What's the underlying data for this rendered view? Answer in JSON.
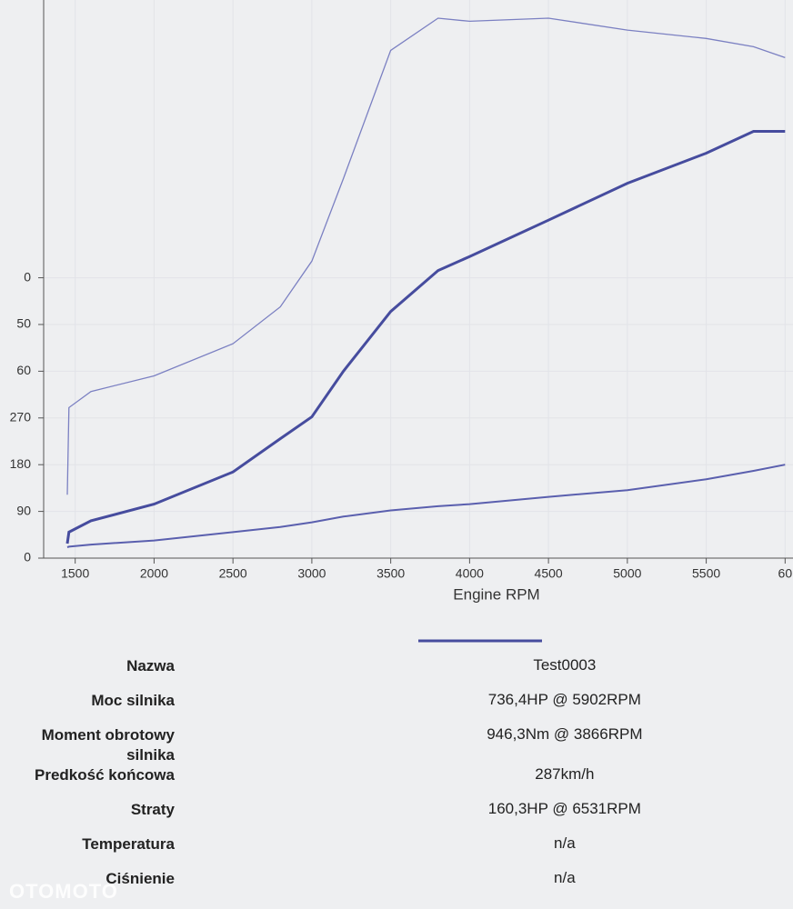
{
  "chart_data": {
    "type": "line",
    "xlabel": "Engine RPM",
    "x": [
      1450,
      1460,
      1600,
      2000,
      2500,
      2800,
      3000,
      3200,
      3500,
      3800,
      4000,
      4500,
      5000,
      5500,
      5800,
      6000
    ],
    "series": [
      {
        "color": "#7b80c2",
        "width": 1.3,
        "values": [
          122,
          290,
          321,
          351,
          413,
          484,
          572,
          731,
          978,
          1040,
          1034,
          1040,
          1017,
          1001,
          985,
          964
        ]
      },
      {
        "color": "#464c9e",
        "width": 3,
        "values": [
          28,
          50,
          72,
          104,
          166,
          230,
          272,
          360,
          475,
          554,
          581,
          651,
          722,
          780,
          822,
          822
        ]
      },
      {
        "color": "#5a5fae",
        "width": 2,
        "values": [
          21,
          22,
          26,
          34,
          50,
          60,
          69,
          80,
          92,
          100,
          104,
          118,
          131,
          152,
          168,
          180
        ]
      }
    ],
    "xlim": [
      1300,
      6050
    ],
    "ylim": [
      0,
      1075
    ],
    "xticks": [
      1500,
      2000,
      2500,
      3000,
      3500,
      4000,
      4500,
      5000,
      5500,
      {
        "value": 6000,
        "label": "60"
      }
    ],
    "yticks": [
      0,
      90,
      180,
      270,
      {
        "value": 360,
        "label": "60"
      },
      {
        "value": 450,
        "label": "50"
      },
      {
        "value": 540,
        "label": "0"
      }
    ],
    "grid": true
  },
  "legend": {
    "name": "Test0003",
    "color": "#464c9e"
  },
  "table": {
    "rows": [
      [
        "Nazwa",
        "Test0003"
      ],
      [
        "Moc silnika",
        "736,4HP @ 5902RPM"
      ],
      [
        "Moment obrotowy silnika",
        "946,3Nm @ 3866RPM"
      ],
      [
        "Predkość końcowa",
        "287km/h"
      ],
      [
        "Straty",
        "160,3HP @ 6531RPM"
      ],
      [
        "Temperatura",
        "n/a"
      ],
      [
        "Ciśnienie",
        "n/a"
      ]
    ]
  },
  "watermark": "OTOMOTO"
}
